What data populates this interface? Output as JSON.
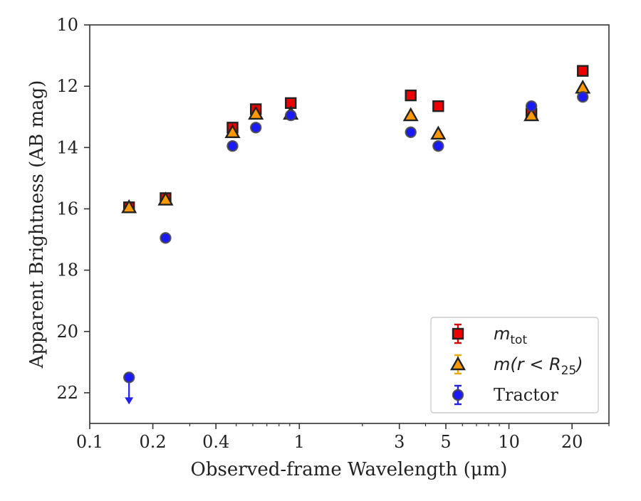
{
  "chart_data": {
    "type": "scatter",
    "xlabel": "Observed-frame Wavelength (μm)",
    "ylabel": "Apparent Brightness (AB mag)",
    "x_scale": "log",
    "xlim": [
      0.1,
      30
    ],
    "ylim": [
      23,
      10
    ],
    "y_inverted": true,
    "x_ticks": [
      {
        "value": 0.1,
        "label": "0.1"
      },
      {
        "value": 0.2,
        "label": "0.2"
      },
      {
        "value": 0.4,
        "label": "0.4"
      },
      {
        "value": 1,
        "label": "1"
      },
      {
        "value": 3,
        "label": "3"
      },
      {
        "value": 5,
        "label": "5"
      },
      {
        "value": 10,
        "label": "10"
      },
      {
        "value": 20,
        "label": "20"
      }
    ],
    "x_minor_ticks": [
      0.3,
      0.5,
      0.6,
      0.7,
      0.8,
      0.9,
      2,
      4,
      6,
      7,
      8,
      9,
      30
    ],
    "y_ticks": [
      {
        "value": 10,
        "label": "10"
      },
      {
        "value": 12,
        "label": "12"
      },
      {
        "value": 14,
        "label": "14"
      },
      {
        "value": 16,
        "label": "16"
      },
      {
        "value": 18,
        "label": "18"
      },
      {
        "value": 20,
        "label": "20"
      },
      {
        "value": 22,
        "label": "22"
      }
    ],
    "legend_position": "lower-right",
    "series": [
      {
        "name": "m_tot",
        "legend_label": "m",
        "legend_subscript": "tot",
        "marker": "square",
        "color": "#ee0000",
        "error_color": "#dd0000",
        "points": [
          {
            "x": 0.154,
            "y": 15.95
          },
          {
            "x": 0.23,
            "y": 15.65
          },
          {
            "x": 0.48,
            "y": 13.35
          },
          {
            "x": 0.62,
            "y": 12.75
          },
          {
            "x": 0.91,
            "y": 12.55
          },
          {
            "x": 3.4,
            "y": 12.3
          },
          {
            "x": 4.6,
            "y": 12.65
          },
          {
            "x": 12.8,
            "y": 12.9
          },
          {
            "x": 22.5,
            "y": 11.5
          }
        ]
      },
      {
        "name": "m(r < R25)",
        "legend_label": "m(r < R",
        "legend_subscript": "25",
        "legend_suffix": ")",
        "marker": "triangle",
        "color": "#ff9900",
        "error_color": "#f0a800",
        "points": [
          {
            "x": 0.154,
            "y": 15.95
          },
          {
            "x": 0.23,
            "y": 15.7
          },
          {
            "x": 0.48,
            "y": 13.5
          },
          {
            "x": 0.62,
            "y": 12.9
          },
          {
            "x": 0.91,
            "y": 12.9
          },
          {
            "x": 3.4,
            "y": 12.95
          },
          {
            "x": 4.6,
            "y": 13.55
          },
          {
            "x": 12.8,
            "y": 12.95
          },
          {
            "x": 22.5,
            "y": 12.05
          }
        ]
      },
      {
        "name": "Tractor",
        "legend_label": "Tractor",
        "marker": "circle",
        "color": "#1a1aff",
        "error_color": "#2222ee",
        "points": [
          {
            "x": 0.154,
            "y": 21.5,
            "upper_limit": true
          },
          {
            "x": 0.23,
            "y": 16.95
          },
          {
            "x": 0.48,
            "y": 13.95
          },
          {
            "x": 0.62,
            "y": 13.35
          },
          {
            "x": 0.91,
            "y": 12.95
          },
          {
            "x": 3.4,
            "y": 13.5
          },
          {
            "x": 4.6,
            "y": 13.95
          },
          {
            "x": 12.8,
            "y": 12.65
          },
          {
            "x": 22.5,
            "y": 12.35
          }
        ]
      }
    ]
  }
}
